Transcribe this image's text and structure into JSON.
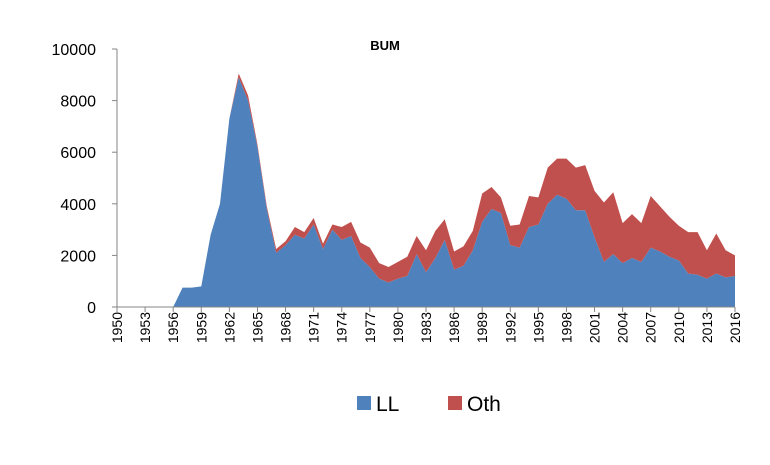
{
  "chart_data": {
    "type": "area",
    "stacked": true,
    "title": "BUM",
    "xlabel": "",
    "ylabel": "",
    "ylim": [
      0,
      10000
    ],
    "yticks": [
      0,
      2000,
      4000,
      6000,
      8000,
      10000
    ],
    "yticks_labels": [
      "0",
      "2000",
      "4000",
      "6000",
      "8000",
      "10000"
    ],
    "xticks_labels": [
      "1950",
      "1953",
      "1956",
      "1959",
      "1962",
      "1965",
      "1968",
      "1971",
      "1974",
      "1977",
      "1980",
      "1983",
      "1986",
      "1989",
      "1992",
      "1995",
      "1998",
      "2001",
      "2004",
      "2007",
      "2010",
      "2013",
      "2016"
    ],
    "grid": false,
    "legend_position": "bottom",
    "x": [
      1950,
      1951,
      1952,
      1953,
      1954,
      1955,
      1956,
      1957,
      1958,
      1959,
      1960,
      1961,
      1962,
      1963,
      1964,
      1965,
      1966,
      1967,
      1968,
      1969,
      1970,
      1971,
      1972,
      1973,
      1974,
      1975,
      1976,
      1977,
      1978,
      1979,
      1980,
      1981,
      1982,
      1983,
      1984,
      1985,
      1986,
      1987,
      1988,
      1989,
      1990,
      1991,
      1992,
      1993,
      1994,
      1995,
      1996,
      1997,
      1998,
      1999,
      2000,
      2001,
      2002,
      2003,
      2004,
      2005,
      2006,
      2007,
      2008,
      2009,
      2010,
      2011,
      2012,
      2013,
      2014,
      2015,
      2016
    ],
    "series": [
      {
        "name": "LL",
        "color": "#4f81bd",
        "values": [
          0,
          0,
          0,
          0,
          0,
          0,
          0,
          750,
          750,
          800,
          2800,
          4000,
          7300,
          8900,
          8000,
          6200,
          3800,
          2100,
          2400,
          2800,
          2650,
          3200,
          2250,
          3000,
          2600,
          2750,
          1900,
          1550,
          1100,
          950,
          1100,
          1200,
          2050,
          1350,
          1900,
          2600,
          1450,
          1600,
          2200,
          3300,
          3800,
          3650,
          2400,
          2300,
          3100,
          3200,
          4000,
          4350,
          4200,
          3750,
          3750,
          2700,
          1750,
          2050,
          1700,
          1900,
          1750,
          2300,
          2150,
          1950,
          1800,
          1300,
          1250,
          1100,
          1300,
          1150,
          1200
        ]
      },
      {
        "name": "Oth",
        "color": "#c0504d",
        "values": [
          0,
          0,
          0,
          0,
          0,
          0,
          0,
          0,
          0,
          0,
          0,
          0,
          0,
          150,
          200,
          100,
          100,
          150,
          150,
          300,
          250,
          250,
          200,
          200,
          500,
          550,
          600,
          750,
          600,
          600,
          650,
          750,
          700,
          850,
          1050,
          800,
          700,
          750,
          750,
          1100,
          850,
          600,
          750,
          900,
          1200,
          1050,
          1400,
          1400,
          1550,
          1650,
          1750,
          1800,
          2300,
          2400,
          1550,
          1700,
          1500,
          2000,
          1750,
          1550,
          1350,
          1600,
          1650,
          1100,
          1550,
          1050,
          800
        ]
      }
    ]
  }
}
